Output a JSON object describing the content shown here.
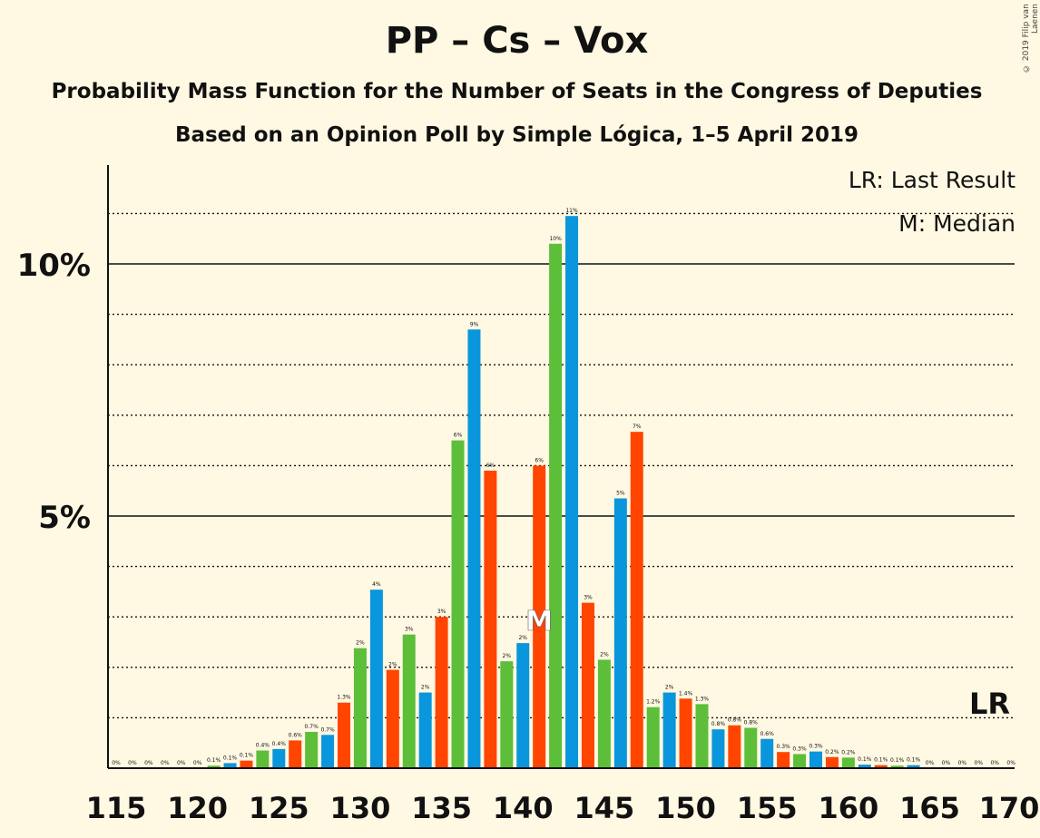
{
  "title": "PP – Cs – Vox",
  "subtitle": "Probability Mass Function for the Number of Seats in the Congress of Deputies",
  "subtitle2": "Based on an Opinion Poll by Simple Lógica, 1–5 April 2019",
  "copyright": "© 2019 Filip van Laenen",
  "legend": {
    "lr": "LR: Last Result",
    "median": "M: Median"
  },
  "colors": {
    "background": "#FFF8E2",
    "pp": "#0A96DC",
    "cs": "#FF4500",
    "vox": "#5DBE3A"
  },
  "chart_data": {
    "type": "bar",
    "x": [
      115,
      116,
      117,
      118,
      119,
      120,
      121,
      122,
      123,
      124,
      125,
      126,
      127,
      128,
      129,
      130,
      131,
      132,
      133,
      134,
      135,
      136,
      137,
      138,
      139,
      140,
      141,
      142,
      143,
      144,
      145,
      146,
      147,
      148,
      149,
      150,
      151,
      152,
      153,
      154,
      155,
      156,
      157,
      158,
      159,
      160,
      161,
      162,
      163,
      164,
      165,
      166,
      167,
      168,
      169,
      170
    ],
    "values": [
      0,
      0,
      0,
      0,
      0,
      0,
      0.05,
      0.1,
      0.15,
      0.35,
      0.38,
      0.55,
      0.72,
      0.66,
      1.3,
      2.38,
      3.54,
      1.95,
      2.65,
      1.5,
      3.0,
      6.5,
      8.7,
      5.9,
      2.12,
      2.48,
      6.0,
      10.4,
      10.95,
      3.28,
      2.15,
      5.35,
      6.67,
      1.21,
      1.5,
      1.38,
      1.27,
      0.77,
      0.85,
      0.8,
      0.58,
      0.32,
      0.28,
      0.33,
      0.22,
      0.21,
      0.07,
      0.06,
      0.05,
      0.06,
      0,
      0,
      0,
      0,
      0,
      0
    ],
    "labels": [
      "0%",
      "0%",
      "0%",
      "0%",
      "0%",
      "0%",
      "0.1%",
      "0.1%",
      "0.1%",
      "0.4%",
      "0.4%",
      "0.6%",
      "0.7%",
      "0.7%",
      "1.3%",
      "2%",
      "4%",
      "2%",
      "3%",
      "2%",
      "3%",
      "6%",
      "9%",
      "6%",
      "2%",
      "2%",
      "6%",
      "10%",
      "11%",
      "3%",
      "2%",
      "5%",
      "7%",
      "1.2%",
      "2%",
      "1.4%",
      "1.3%",
      "0.8%",
      "0.8%",
      "0.8%",
      "0.6%",
      "0.3%",
      "0.3%",
      "0.3%",
      "0.2%",
      "0.2%",
      "0.1%",
      "0.1%",
      "0.1%",
      "0.1%",
      "0%",
      "0%",
      "0%",
      "0%",
      "0%",
      "0%"
    ],
    "bar_colors": [
      "#5DBE3A",
      "#0A96DC",
      "#FF4500"
    ],
    "xticks": [
      "115",
      "120",
      "125",
      "130",
      "135",
      "140",
      "145",
      "150",
      "155",
      "160",
      "165",
      "170"
    ],
    "yticks": [
      "5%",
      "10%"
    ],
    "ylim": [
      0,
      12
    ],
    "median": {
      "seat": 141,
      "label": "M"
    },
    "last_result": {
      "value": 1,
      "label": "LR"
    }
  }
}
